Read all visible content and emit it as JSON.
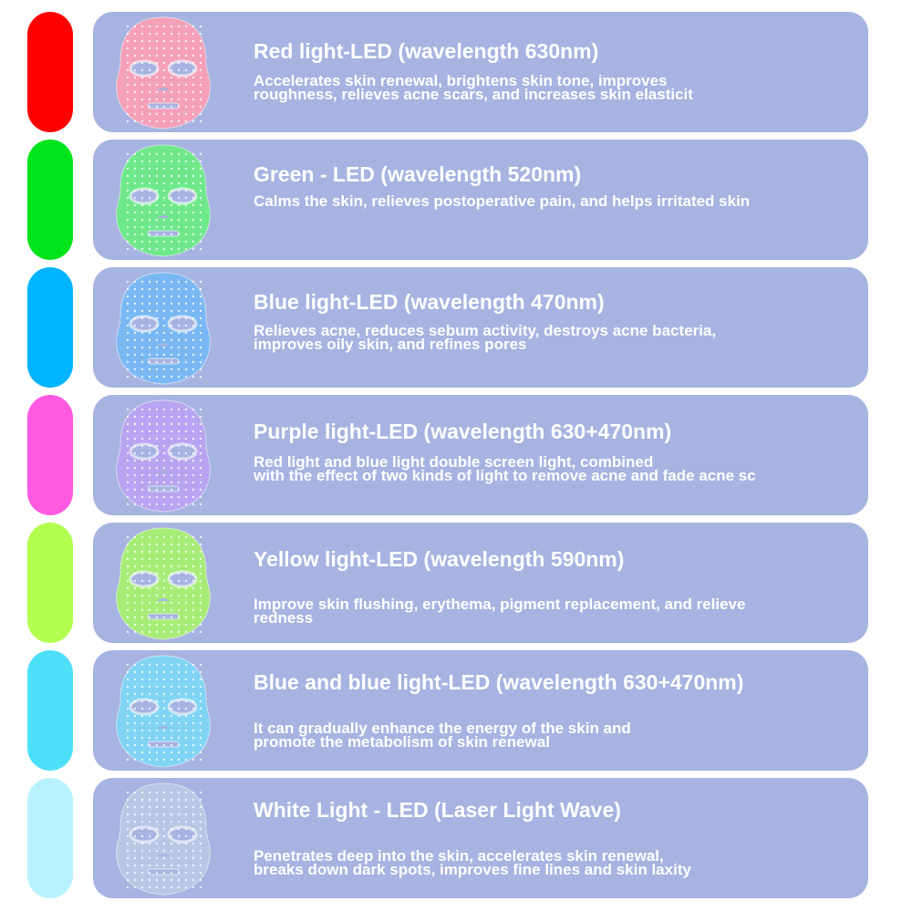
{
  "items": [
    {
      "title": "Red light-LED (wavelength 630nm)",
      "desc": "Accelerates skin renewal, brightens skin tone, improves\nroughness, relieves acne scars, and increases skin elasticit",
      "pill_color": "#ff0000",
      "mask_color": "#f4a0b8"
    },
    {
      "title": "Green - LED (wavelength 520nm)",
      "desc": "Calms the skin, relieves postoperative pain, and helps irritated skin",
      "pill_color": "#00e41c",
      "mask_color": "#6ee88a"
    },
    {
      "title": "Blue light-LED (wavelength 470nm)",
      "desc": "Relieves acne, reduces sebum activity, destroys acne bacteria,\nimproves oily skin, and refines pores",
      "pill_color": "#00b4ff",
      "mask_color": "#7ab8f4"
    },
    {
      "title": "Purple light-LED (wavelength 630+470nm)",
      "desc": "Red light and blue light double screen light, combined\nwith the effect of two kinds of light to remove acne and fade acne sc",
      "pill_color": "#ff5ae0",
      "mask_color": "#b8a4f0"
    },
    {
      "title": "Yellow light-LED (wavelength 590nm)",
      "desc": "Improve skin flushing, erythema, pigment replacement, and relieve\nredness",
      "pill_color": "#b2ff50",
      "mask_color": "#a8ec78"
    },
    {
      "title": "Blue and blue light-LED (wavelength 630+470nm)",
      "desc": "It can gradually enhance the energy of the skin and\npromote the metabolism of skin renewal",
      "pill_color": "#4ce0f8",
      "mask_color": "#80d4f4"
    },
    {
      "title": "White Light - LED (Laser Light Wave)",
      "desc": "Penetrates deep into the skin, accelerates skin renewal,\nbreaks down dark spots, improves fine lines and skin laxity",
      "pill_color": "#b8f2ff",
      "mask_color": "#b8c8e4"
    }
  ]
}
